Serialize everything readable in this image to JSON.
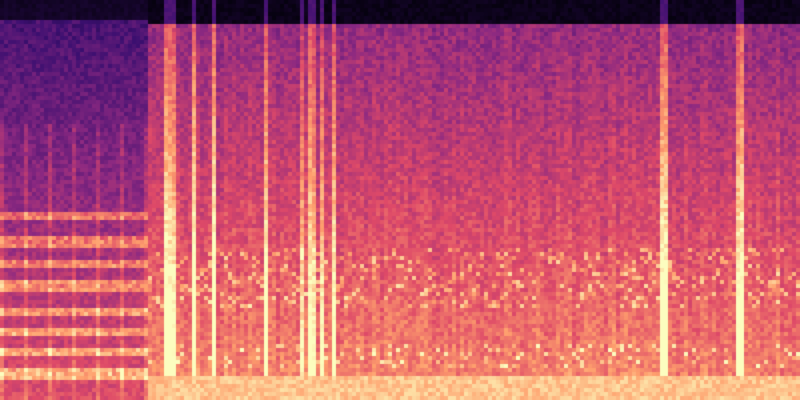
{
  "spectrogram": {
    "colormap": "magma",
    "colors": [
      "#000004",
      "#3b0f70",
      "#8c2981",
      "#de4968",
      "#fe9f6d",
      "#fcfdbf"
    ]
  }
}
